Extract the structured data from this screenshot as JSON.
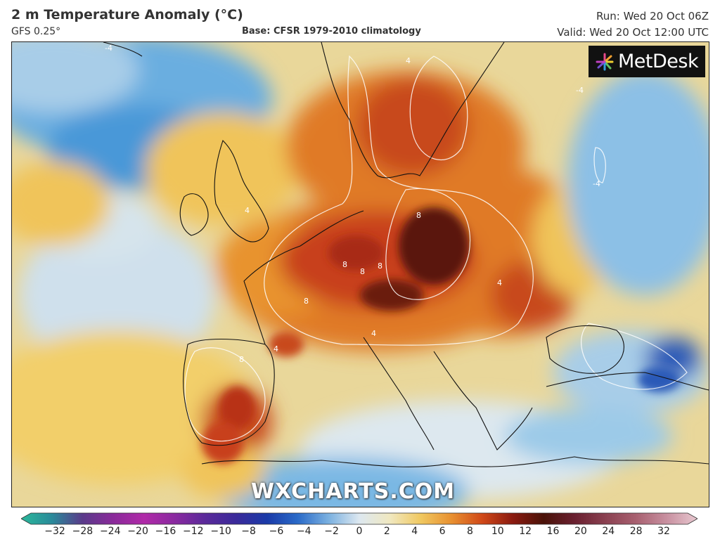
{
  "header": {
    "title": "2 m Temperature Anomaly (°C)",
    "model": "GFS 0.25°",
    "base": "Base: CFSR 1979-2010 climatology",
    "run": "Run: Wed 20 Oct 06Z",
    "valid": "Valid: Wed 20 Oct 12:00 UTC"
  },
  "logo": {
    "text": "MetDesk"
  },
  "watermark": "WXCHARTS.COM",
  "colorbar": {
    "ticks": [
      "−32",
      "−28",
      "−24",
      "−20",
      "−16",
      "−12",
      "−10",
      "−8",
      "−6",
      "−4",
      "−2",
      "0",
      "2",
      "4",
      "6",
      "8",
      "10",
      "12",
      "16",
      "20",
      "24",
      "28",
      "32"
    ],
    "colors": [
      "#2ab89a",
      "#2a8a9a",
      "#5a3a8a",
      "#8a2a9a",
      "#b02aa8",
      "#8a2aa0",
      "#5a2a9a",
      "#3a2a9a",
      "#1a3aa8",
      "#2a6ac8",
      "#7ab0e0",
      "#dde8f0",
      "#f0e8c0",
      "#f0c860",
      "#e89030",
      "#d04818",
      "#8a1a10",
      "#4a1208",
      "#6a2030",
      "#8a4050",
      "#a86070",
      "#c890a0",
      "#e8c8d0"
    ],
    "unit_note": ""
  },
  "map_labels": {
    "contour_4": "4",
    "contour_8": "8",
    "contour_neg4": "-4"
  },
  "colors": {
    "sea_cold": "#5ea8dc",
    "neutral": "#dce8ef",
    "warm_yellow": "#f0c45a",
    "warm_orange": "#e8882a",
    "hot_red": "#c8401a",
    "very_hot": "#6a1a10",
    "deep_blue": "#2a5ab8"
  }
}
